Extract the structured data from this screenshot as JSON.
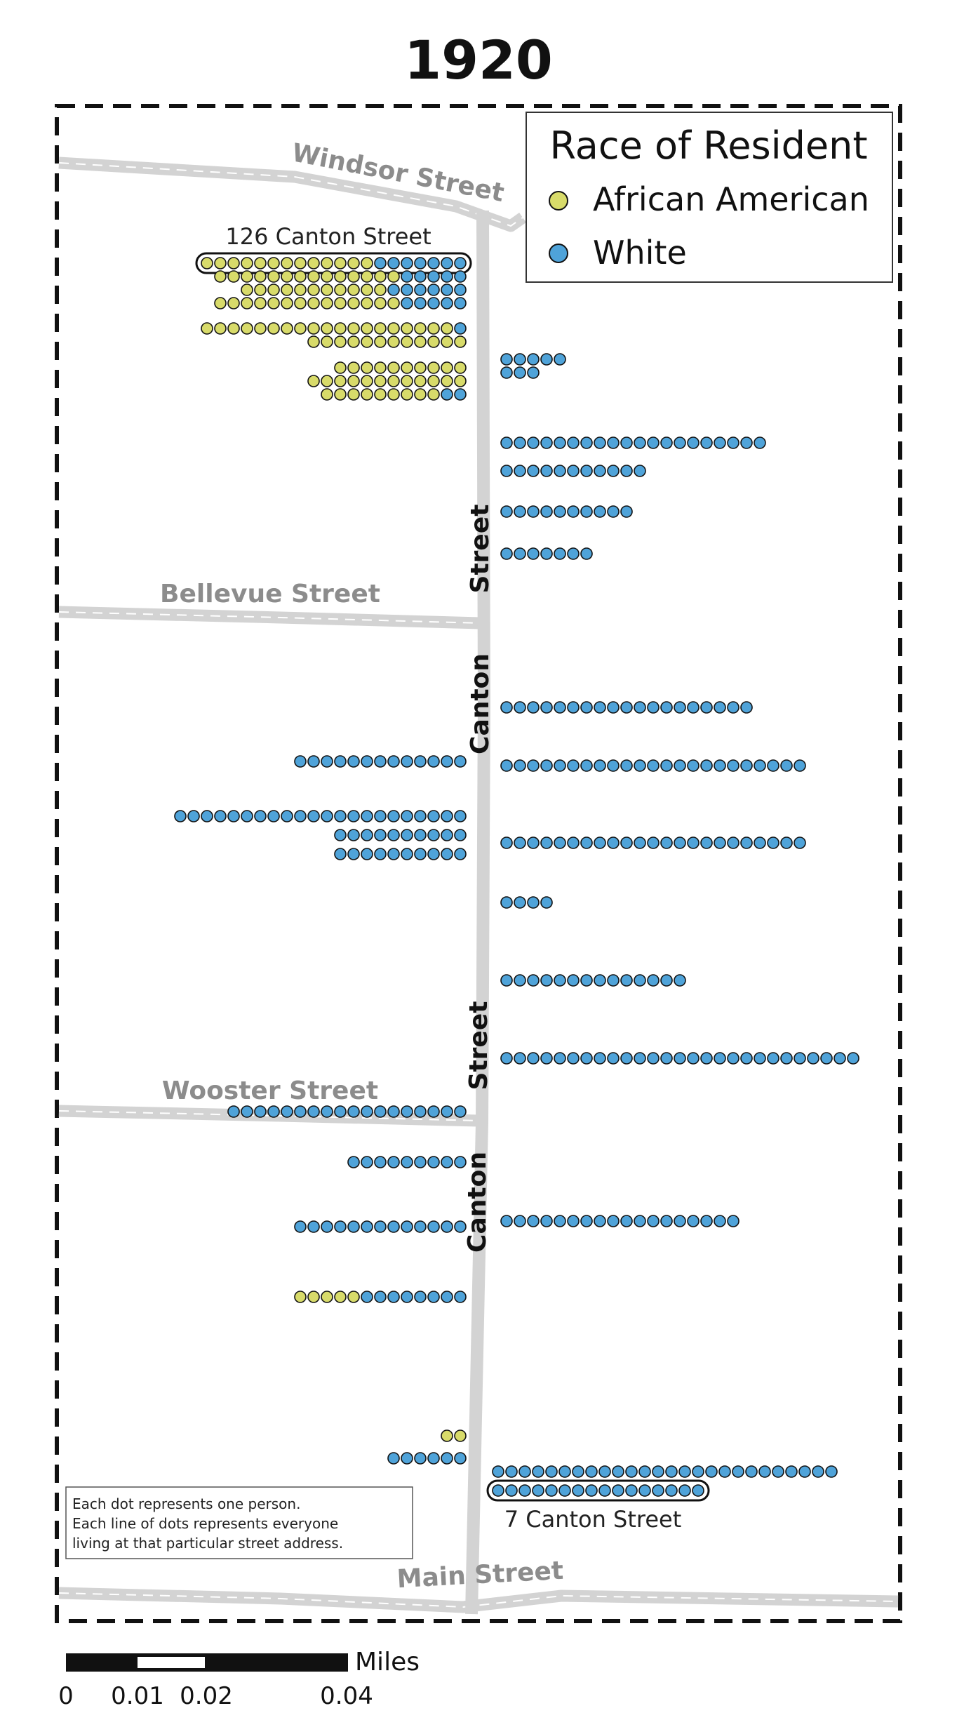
{
  "title": "1920",
  "streets": {
    "windsor": "Windsor Street",
    "bellevue": "Bellevue Street",
    "wooster": "Wooster Street",
    "main": "Main Street",
    "canton_upper_a": "Street",
    "canton_upper_b": "Canton",
    "canton_lower_a": "Street",
    "canton_lower_b": "Canton"
  },
  "callouts": {
    "top": "126 Canton Street",
    "bottom": "7 Canton Street"
  },
  "legend": {
    "title": "Race of Resident",
    "items": [
      {
        "label": "African American",
        "color": "#d8db6a"
      },
      {
        "label": "White",
        "color": "#4fa3d9"
      }
    ]
  },
  "note": {
    "line1": "Each dot represents one person.",
    "line2": "Each line of dots represents everyone",
    "line3": "living at that particular street address."
  },
  "scale_bar": {
    "unit": "Miles",
    "ticks": [
      "0",
      "0.01",
      "0.02",
      "0.04"
    ]
  },
  "colors": {
    "african_american": "#d8db6a",
    "white": "#4fa3d9",
    "road": "#d3d3d3",
    "street_label": "#8c8c8c"
  },
  "households": {
    "west_side": [
      {
        "address": "126 Canton Street",
        "african_american": 13,
        "white": 7,
        "highlighted": true
      },
      {
        "african_american": 14,
        "white": 5
      },
      {
        "african_american": 11,
        "white": 6
      },
      {
        "african_american": 14,
        "white": 5
      },
      {
        "african_american": 19,
        "white": 1
      },
      {
        "african_american": 12,
        "white": 0
      },
      {
        "african_american": 10,
        "white": 0
      },
      {
        "african_american": 12,
        "white": 0
      },
      {
        "african_american": 9,
        "white": 2
      },
      {
        "african_american": 0,
        "white": 13
      },
      {
        "african_american": 0,
        "white": 22
      },
      {
        "african_american": 0,
        "white": 10
      },
      {
        "african_american": 0,
        "white": 10
      },
      {
        "african_american": 0,
        "white": 18
      },
      {
        "african_american": 0,
        "white": 9
      },
      {
        "african_american": 0,
        "white": 13
      },
      {
        "african_american": 5,
        "white": 8
      },
      {
        "african_american": 2,
        "white": 0
      },
      {
        "african_american": 0,
        "white": 6
      }
    ],
    "east_side": [
      {
        "african_american": 0,
        "white": 5
      },
      {
        "african_american": 0,
        "white": 3
      },
      {
        "african_american": 0,
        "white": 20
      },
      {
        "african_american": 0,
        "white": 11
      },
      {
        "african_american": 0,
        "white": 10
      },
      {
        "african_american": 0,
        "white": 7
      },
      {
        "african_american": 0,
        "white": 19
      },
      {
        "african_american": 0,
        "white": 23
      },
      {
        "african_american": 0,
        "white": 23
      },
      {
        "african_american": 0,
        "white": 4
      },
      {
        "african_american": 0,
        "white": 14
      },
      {
        "african_american": 0,
        "white": 27
      },
      {
        "african_american": 0,
        "white": 18
      },
      {
        "african_american": 0,
        "white": 26
      },
      {
        "address": "7 Canton Street",
        "african_american": 0,
        "white": 16,
        "highlighted": true
      }
    ]
  }
}
